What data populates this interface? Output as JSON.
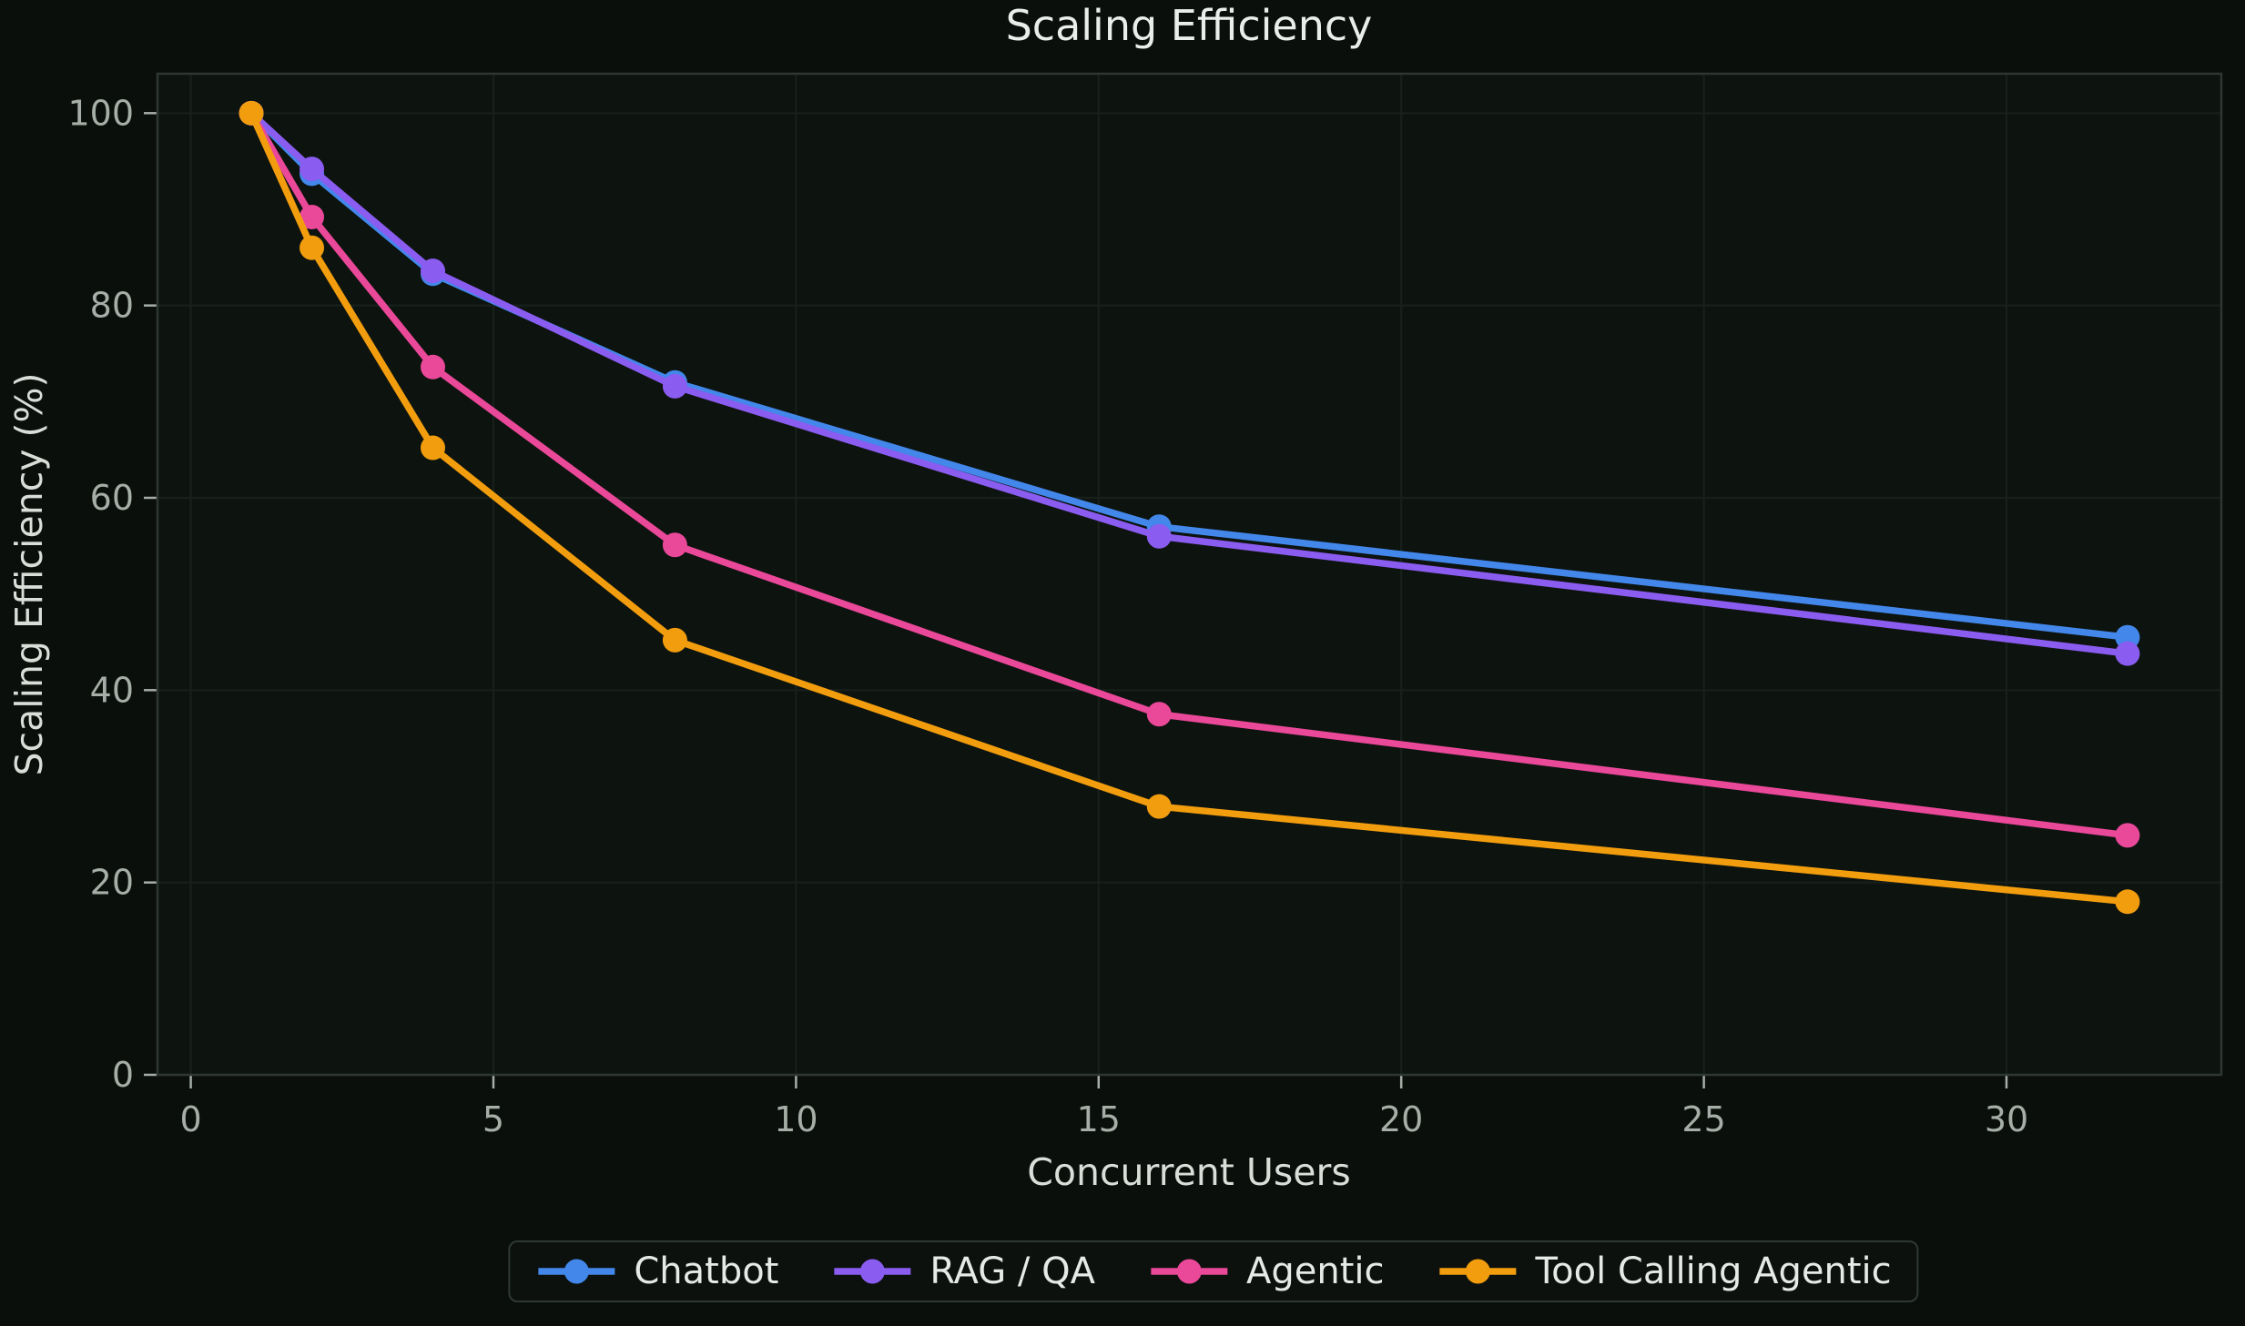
{
  "chart": {
    "title": "Scaling Efficiency",
    "xlabel": "Concurrent Users",
    "ylabel": "Scaling Efficiency (%)",
    "colors": {
      "figure_background": "#0a0f0c",
      "axes_background": "#0d130f",
      "grid": "#18201b",
      "spine": "#2e3731",
      "tick": "#a6aea7",
      "title": "#eaedea",
      "axis_label": "#d9ded9",
      "legend_background": "#0c110e",
      "legend_border": "#2f3933",
      "legend_text": "#e6e9e6"
    }
  },
  "chart_data": {
    "type": "line",
    "title": "Scaling Efficiency",
    "xlabel": "Concurrent Users",
    "ylabel": "Scaling Efficiency (%)",
    "x": [
      1,
      2,
      4,
      8,
      16,
      32
    ],
    "series": [
      {
        "name": "Chatbot",
        "color": "#4287e9",
        "values": [
          100,
          93.7,
          83.3,
          72.0,
          57.0,
          45.5
        ]
      },
      {
        "name": "RAG / QA",
        "color": "#8a5cf0",
        "values": [
          100,
          94.2,
          83.6,
          71.6,
          56.0,
          43.8
        ]
      },
      {
        "name": "Agentic",
        "color": "#ea4899",
        "values": [
          100,
          89.2,
          73.6,
          55.1,
          37.5,
          24.9
        ]
      },
      {
        "name": "Tool Calling Agentic",
        "color": "#f29d0e",
        "values": [
          100,
          86.0,
          65.2,
          45.2,
          27.9,
          18.0
        ]
      }
    ],
    "xticks": [
      0,
      5,
      10,
      15,
      20,
      25,
      30
    ],
    "yticks": [
      0,
      20,
      40,
      60,
      80,
      100
    ],
    "xlim": [
      -0.55,
      33.55
    ],
    "ylim": [
      0,
      104.1
    ],
    "grid": true,
    "legend_position": "bottom center",
    "marker": "circle",
    "line_width": 7.5,
    "marker_radius": 13.5
  }
}
